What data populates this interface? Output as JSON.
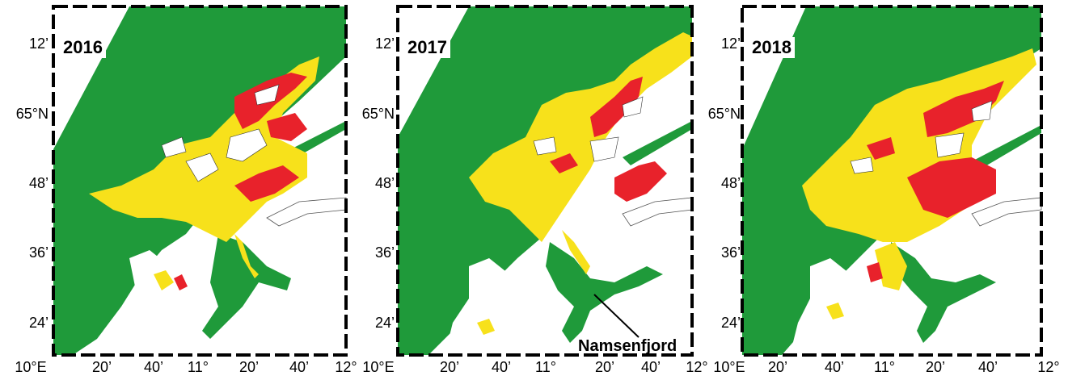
{
  "panels": [
    {
      "year": "2016",
      "y_ticks": [
        "12’",
        "65°N",
        "48’",
        "36’",
        "24’"
      ],
      "x_ticks": [
        "10°E",
        "20’",
        "40’",
        "11°",
        "20’",
        "40’",
        "12°"
      ]
    },
    {
      "year": "2017",
      "y_ticks": [
        "12’",
        "65°N",
        "48’",
        "36’",
        "24’"
      ],
      "x_ticks": [
        "10°E",
        "20’",
        "40’",
        "11°",
        "20’",
        "40’",
        "12°"
      ],
      "callout": "Namsenfjord"
    },
    {
      "year": "2018",
      "y_ticks": [
        "12’",
        "65°N",
        "48’",
        "36’",
        "24’"
      ],
      "x_ticks": [
        "10°E",
        "20’",
        "40’",
        "11°",
        "20’",
        "40’",
        "12°"
      ]
    }
  ],
  "colors": {
    "sea": "#1f9a3a",
    "yellow_zone": "#f7e11b",
    "red_zone": "#e8222b",
    "land": "#ffffff",
    "frame": "#000000"
  }
}
